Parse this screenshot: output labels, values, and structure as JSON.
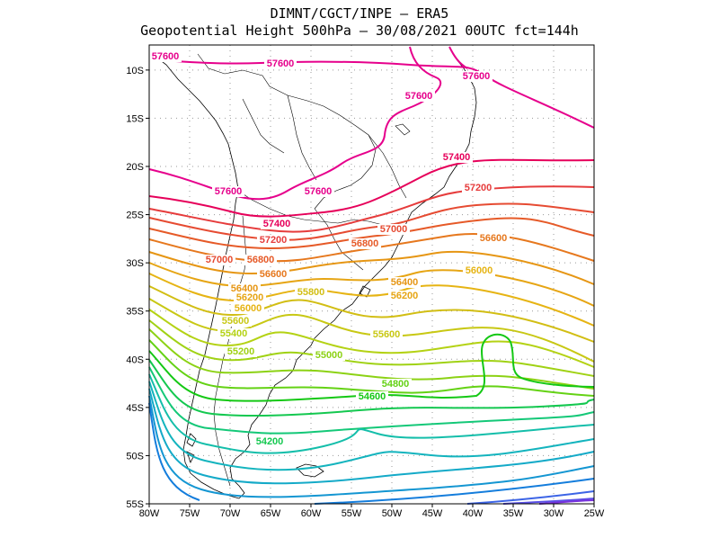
{
  "title_line1": "DIMNT/CGCT/INPE –  ERA5",
  "title_line2": "Geopotential Height 500hPa –  30/08/2021 00UTC fct=144h",
  "lat_labels": [
    "10S",
    "15S",
    "20S",
    "25S",
    "30S",
    "35S",
    "40S",
    "45S",
    "50S",
    "55S"
  ],
  "lon_labels": [
    "80W",
    "75W",
    "70W",
    "65W",
    "60W",
    "55W",
    "50W",
    "45W",
    "40W",
    "35W",
    "30W",
    "25W"
  ],
  "contour_labels": [
    {
      "text": "57600",
      "color": "#e6008c"
    },
    {
      "text": "57600",
      "color": "#e6008c"
    },
    {
      "text": "57600",
      "color": "#e6008c"
    },
    {
      "text": "57600",
      "color": "#e6008c"
    },
    {
      "text": "57600",
      "color": "#e6008c"
    },
    {
      "text": "57600",
      "color": "#e6008c"
    },
    {
      "text": "57400",
      "color": "#e6005a"
    },
    {
      "text": "57400",
      "color": "#e6005a"
    },
    {
      "text": "57200",
      "color": "#e63c3c"
    },
    {
      "text": "57200",
      "color": "#e63c3c"
    },
    {
      "text": "57000",
      "color": "#e64b32"
    },
    {
      "text": "57000",
      "color": "#e64b32"
    },
    {
      "text": "56800",
      "color": "#e65a28"
    },
    {
      "text": "56800",
      "color": "#e65a28"
    },
    {
      "text": "56600",
      "color": "#e6781e"
    },
    {
      "text": "56600",
      "color": "#e6781e"
    },
    {
      "text": "56400",
      "color": "#e69614"
    },
    {
      "text": "56400",
      "color": "#e69614"
    },
    {
      "text": "56200",
      "color": "#e6a514"
    },
    {
      "text": "56200",
      "color": "#e6a514"
    },
    {
      "text": "56000",
      "color": "#e6b414"
    },
    {
      "text": "56000",
      "color": "#e6b414"
    },
    {
      "text": "55800",
      "color": "#d2be14"
    },
    {
      "text": "55600",
      "color": "#c8c814"
    },
    {
      "text": "55600",
      "color": "#c8c814"
    },
    {
      "text": "55400",
      "color": "#b4d214"
    },
    {
      "text": "55200",
      "color": "#a0d214"
    },
    {
      "text": "55000",
      "color": "#8cd214"
    },
    {
      "text": "54800",
      "color": "#64d214"
    },
    {
      "text": "54600",
      "color": "#14c814"
    },
    {
      "text": "54200",
      "color": "#14c850"
    }
  ]
}
